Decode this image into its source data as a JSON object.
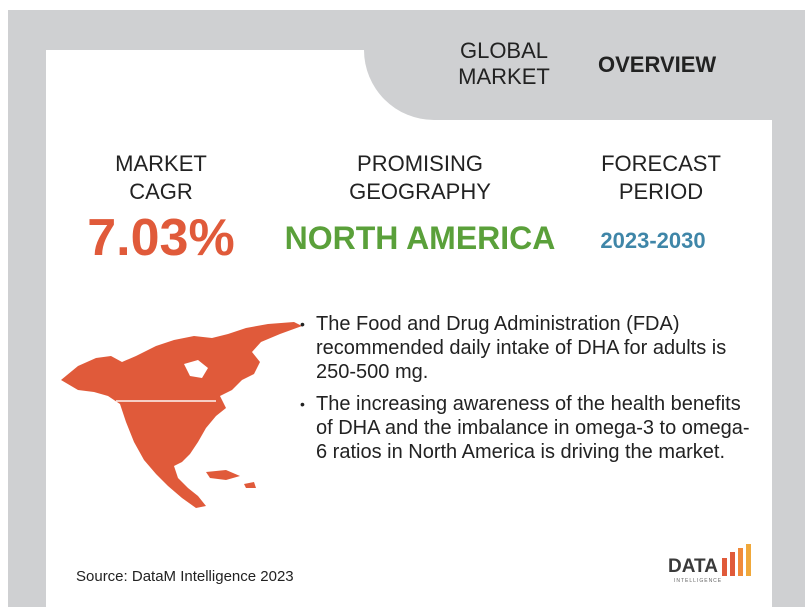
{
  "header": {
    "tab_global": "GLOBAL MARKET",
    "tab_overview": "OVERVIEW"
  },
  "stats": {
    "cagr_label": "MARKET CAGR",
    "cagr_value": "7.03%",
    "geo_label": "PROMISING GEOGRAPHY",
    "geo_value": "NORTH AMERICA",
    "period_label": "FORECAST PERIOD",
    "period_value": "2023-2030"
  },
  "bullets": [
    "The Food and Drug Administration (FDA) recommended daily intake of DHA for adults is 250-500 mg.",
    "The increasing awareness of the health benefits of DHA and the imbalance in omega-3 to omega-6 ratios in North America is driving the market."
  ],
  "footer": {
    "source": "Source: DataM Intelligence 2023",
    "logo_text": "DATA",
    "logo_subtext": "INTELLIGENCE"
  },
  "colors": {
    "accent_red": "#e05a3a",
    "accent_green": "#5aa03a",
    "accent_blue": "#3f86a8",
    "frame_gray": "#cfd0d2"
  },
  "icons": {
    "map": "north-america-map-icon",
    "logo": "datam-logo-icon"
  }
}
